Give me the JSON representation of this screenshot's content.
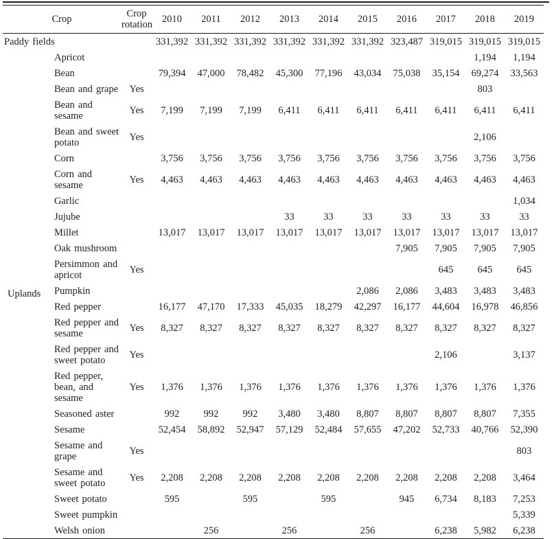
{
  "colors": {
    "background": "#ffffff",
    "text": "#1f1f1f",
    "rule": "#1a1a1a"
  },
  "table": {
    "header": {
      "crop_label": "Crop",
      "rotation_label": "Crop rotation",
      "years": [
        "2010",
        "2011",
        "2012",
        "2013",
        "2014",
        "2015",
        "2016",
        "2017",
        "2018",
        "2019"
      ]
    },
    "paddy_row": {
      "label": "Paddy fields",
      "rotation": "",
      "values": [
        "331,392",
        "331,392",
        "331,392",
        "331,392",
        "331,392",
        "331,392",
        "323,487",
        "319,015",
        "319,015",
        "319,015"
      ]
    },
    "uplands_group_label": "Uplands",
    "uplands_rows": [
      {
        "crop": "Apricot",
        "rotation": "",
        "values": [
          "",
          "",
          "",
          "",
          "",
          "",
          "",
          "",
          "1,194",
          "1,194"
        ]
      },
      {
        "crop": "Bean",
        "rotation": "",
        "values": [
          "79,394",
          "47,000",
          "78,482",
          "45,300",
          "77,196",
          "43,034",
          "75,038",
          "35,154",
          "69,274",
          "33,563"
        ]
      },
      {
        "crop": "Bean and grape",
        "rotation": "Yes",
        "values": [
          "",
          "",
          "",
          "",
          "",
          "",
          "",
          "",
          "803",
          ""
        ]
      },
      {
        "crop": "Bean and sesame",
        "rotation": "Yes",
        "values": [
          "7,199",
          "7,199",
          "7,199",
          "6,411",
          "6,411",
          "6,411",
          "6,411",
          "6,411",
          "6,411",
          "6,411"
        ]
      },
      {
        "crop": "Bean and sweet potato",
        "rotation": "Yes",
        "values": [
          "",
          "",
          "",
          "",
          "",
          "",
          "",
          "",
          "2,106",
          ""
        ]
      },
      {
        "crop": "Corn",
        "rotation": "",
        "values": [
          "3,756",
          "3,756",
          "3,756",
          "3,756",
          "3,756",
          "3,756",
          "3,756",
          "3,756",
          "3,756",
          "3,756"
        ]
      },
      {
        "crop": "Corn and sesame",
        "rotation": "Yes",
        "values": [
          "4,463",
          "4,463",
          "4,463",
          "4,463",
          "4,463",
          "4,463",
          "4,463",
          "4,463",
          "4,463",
          "4,463"
        ]
      },
      {
        "crop": "Garlic",
        "rotation": "",
        "values": [
          "",
          "",
          "",
          "",
          "",
          "",
          "",
          "",
          "",
          "1,034"
        ]
      },
      {
        "crop": "Jujube",
        "rotation": "",
        "values": [
          "",
          "",
          "",
          "33",
          "33",
          "33",
          "33",
          "33",
          "33",
          "33"
        ]
      },
      {
        "crop": "Millet",
        "rotation": "",
        "values": [
          "13,017",
          "13,017",
          "13,017",
          "13,017",
          "13,017",
          "13,017",
          "13,017",
          "13,017",
          "13,017",
          "13,017"
        ]
      },
      {
        "crop": "Oak mushroom",
        "rotation": "",
        "values": [
          "",
          "",
          "",
          "",
          "",
          "",
          "7,905",
          "7,905",
          "7,905",
          "7,905"
        ]
      },
      {
        "crop": "Persimmon and apricot",
        "rotation": "Yes",
        "values": [
          "",
          "",
          "",
          "",
          "",
          "",
          "",
          "645",
          "645",
          "645"
        ]
      },
      {
        "crop": "Pumpkin",
        "rotation": "",
        "values": [
          "",
          "",
          "",
          "",
          "",
          "2,086",
          "2,086",
          "3,483",
          "3,483",
          "3,483"
        ]
      },
      {
        "crop": "Red pepper",
        "rotation": "",
        "values": [
          "16,177",
          "47,170",
          "17,333",
          "45,035",
          "18,279",
          "42,297",
          "16,177",
          "44,604",
          "16,978",
          "46,856"
        ]
      },
      {
        "crop": "Red pepper and sesame",
        "rotation": "Yes",
        "values": [
          "8,327",
          "8,327",
          "8,327",
          "8,327",
          "8,327",
          "8,327",
          "8,327",
          "8,327",
          "8,327",
          "8,327"
        ]
      },
      {
        "crop": "Red pepper and sweet potato",
        "rotation": "Yes",
        "values": [
          "",
          "",
          "",
          "",
          "",
          "",
          "",
          "2,106",
          "",
          "3,137"
        ]
      },
      {
        "crop": "Red pepper, bean, and sesame",
        "rotation": "Yes",
        "values": [
          "1,376",
          "1,376",
          "1,376",
          "1,376",
          "1,376",
          "1,376",
          "1,376",
          "1,376",
          "1,376",
          "1,376"
        ]
      },
      {
        "crop": "Seasoned aster",
        "rotation": "",
        "values": [
          "992",
          "992",
          "992",
          "3,480",
          "3,480",
          "8,807",
          "8,807",
          "8,807",
          "8,807",
          "7,355"
        ]
      },
      {
        "crop": "Sesame",
        "rotation": "",
        "values": [
          "52,454",
          "58,892",
          "52,947",
          "57,129",
          "52,484",
          "57,655",
          "47,202",
          "52,733",
          "40,766",
          "52,390"
        ]
      },
      {
        "crop": "Sesame and grape",
        "rotation": "Yes",
        "values": [
          "",
          "",
          "",
          "",
          "",
          "",
          "",
          "",
          "",
          "803"
        ]
      },
      {
        "crop": "Sesame and sweet potato",
        "rotation": "Yes",
        "values": [
          "2,208",
          "2,208",
          "2,208",
          "2,208",
          "2,208",
          "2,208",
          "2,208",
          "2,208",
          "2,208",
          "3,464"
        ]
      },
      {
        "crop": "Sweet potato",
        "rotation": "",
        "values": [
          "595",
          "",
          "595",
          "",
          "595",
          "",
          "945",
          "6,734",
          "8,183",
          "7,253"
        ]
      },
      {
        "crop": "Sweet pumpkin",
        "rotation": "",
        "values": [
          "",
          "",
          "",
          "",
          "",
          "",
          "",
          "",
          "",
          "5,339"
        ]
      },
      {
        "crop": "Welsh onion",
        "rotation": "",
        "values": [
          "",
          "256",
          "",
          "256",
          "",
          "256",
          "",
          "6,238",
          "5,982",
          "6,238"
        ]
      }
    ]
  }
}
